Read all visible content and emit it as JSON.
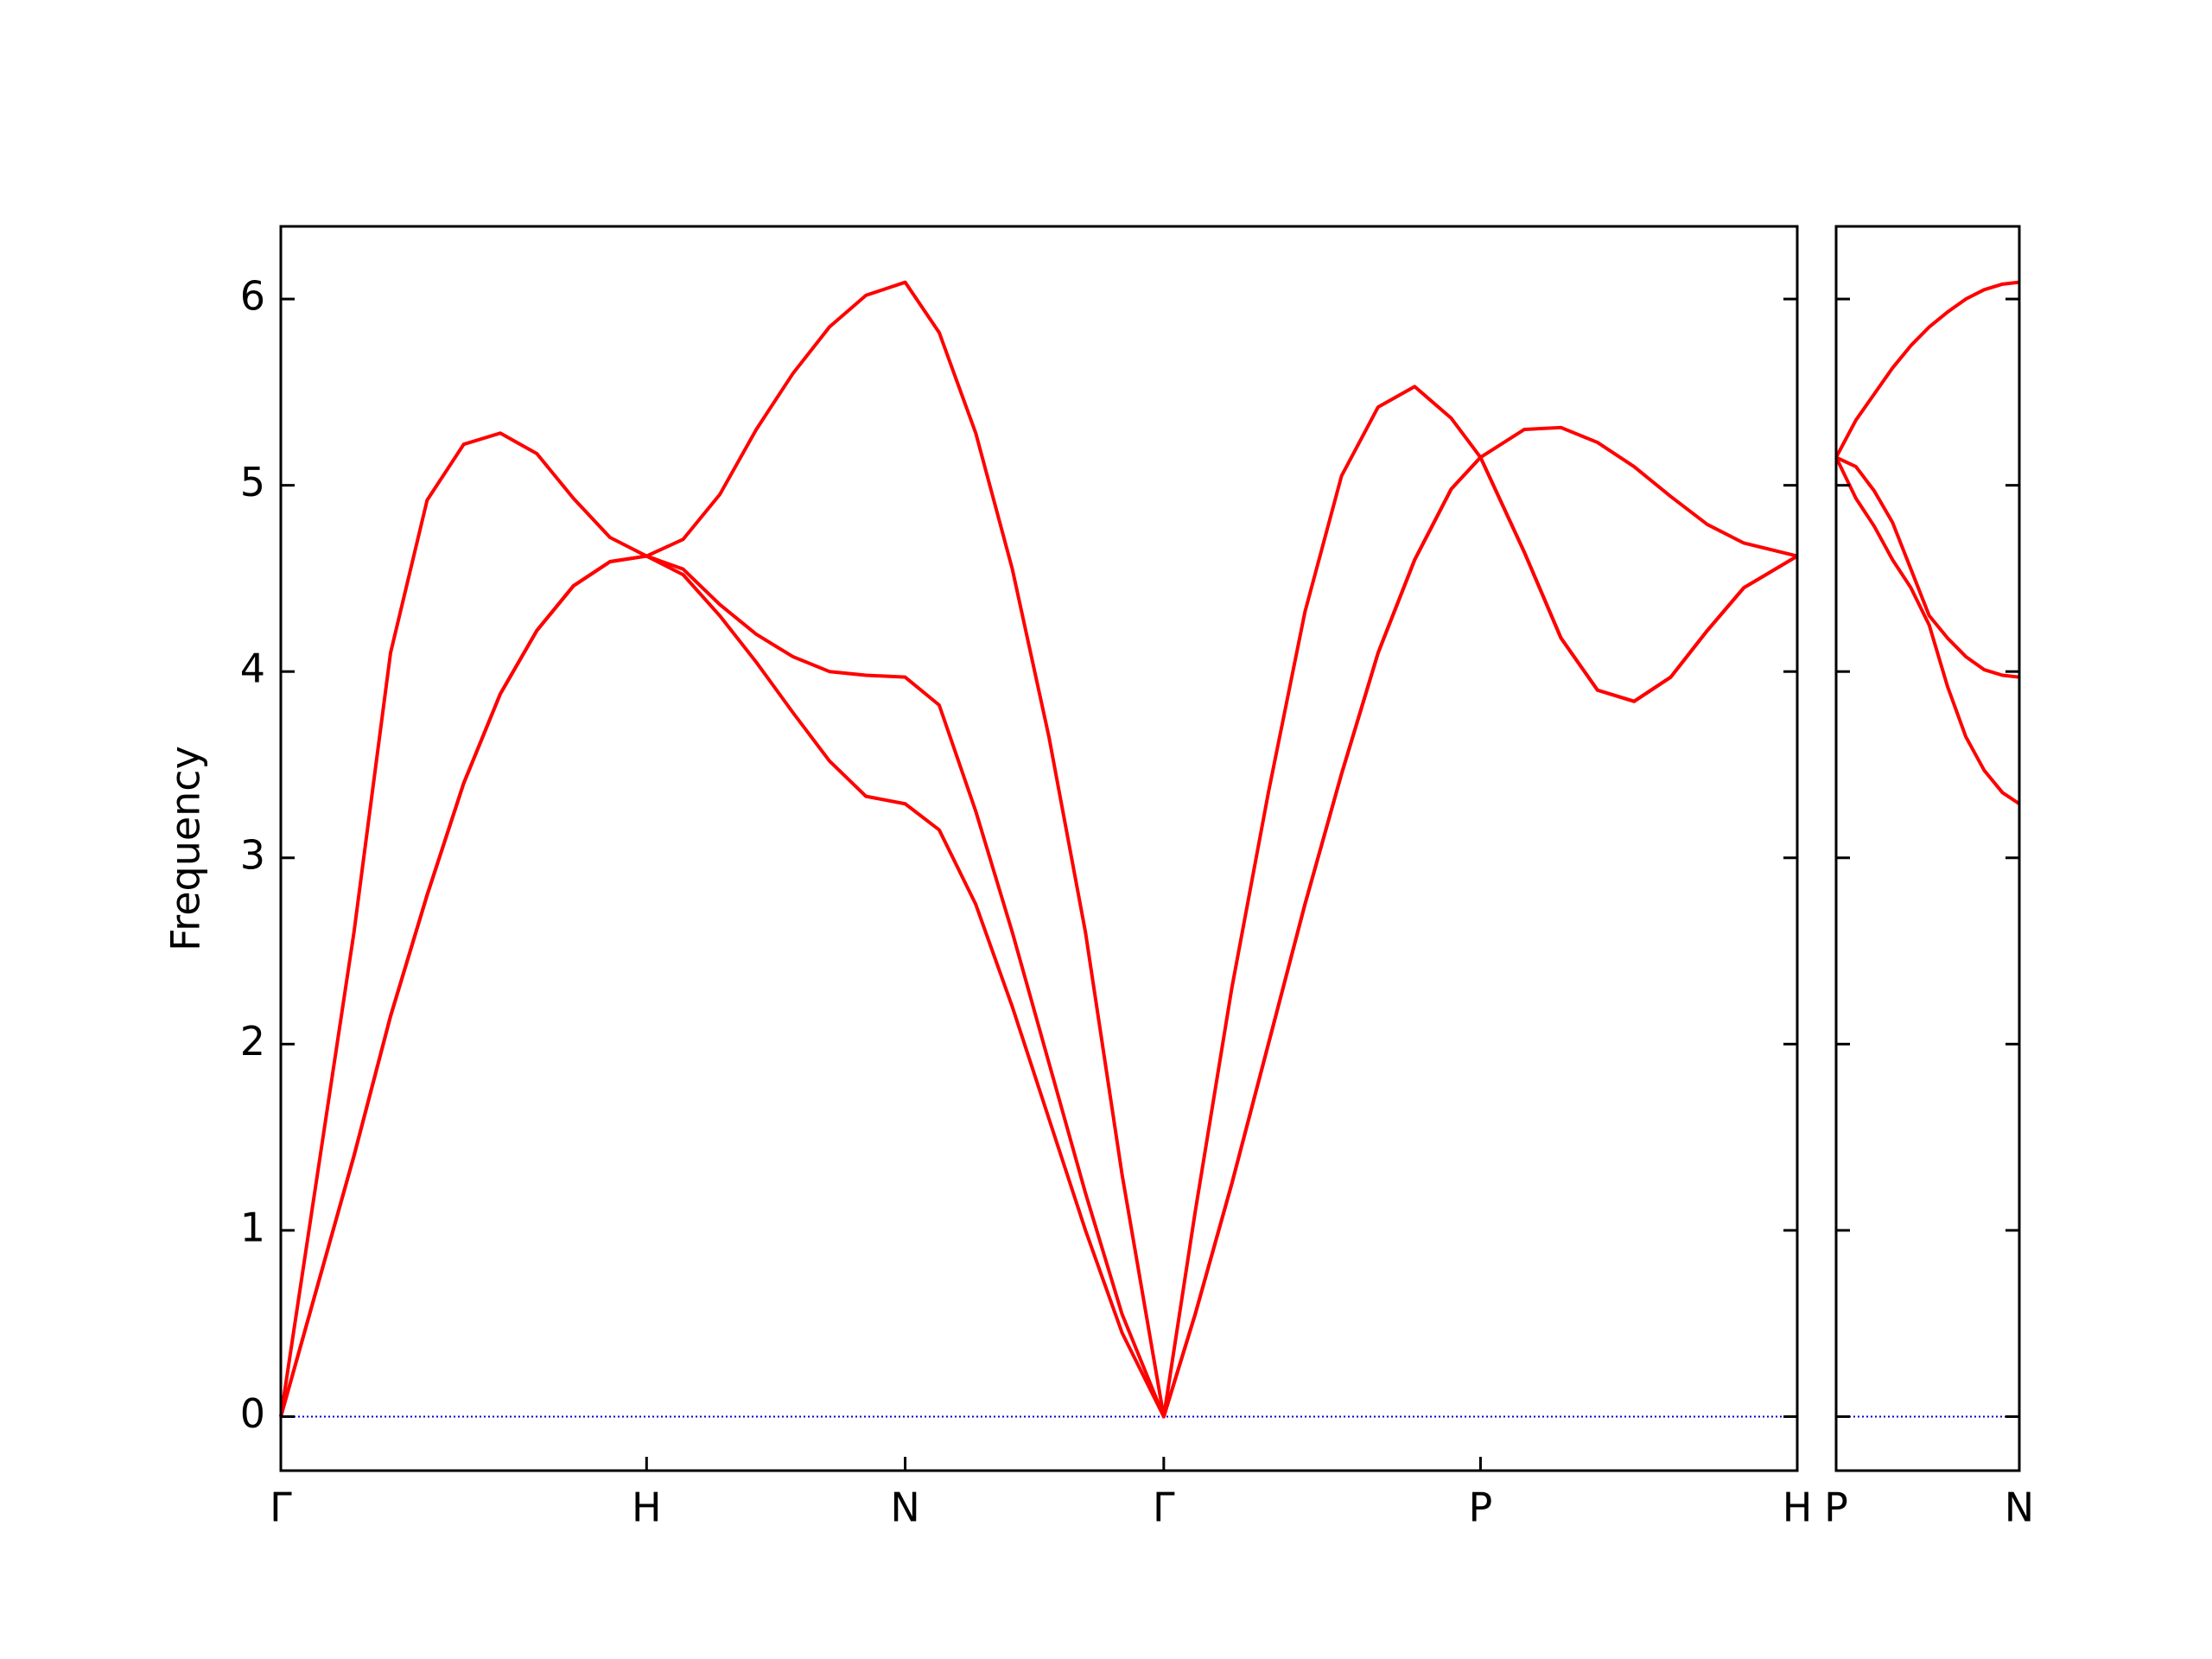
{
  "chart_data": [
    {
      "type": "line",
      "ylabel": "Frequency",
      "x": [
        0,
        0.1,
        0.2,
        0.3,
        0.4,
        0.5,
        0.6,
        0.7,
        0.8,
        0.9,
        1,
        1.1,
        1.2,
        1.3,
        1.4,
        1.5,
        1.6,
        1.707,
        1.8,
        1.9,
        2.0,
        2.1,
        2.2,
        2.3,
        2.414,
        2.5,
        2.6,
        2.7,
        2.8,
        2.9,
        3.0,
        3.1,
        3.2,
        3.28,
        3.4,
        3.5,
        3.6,
        3.7,
        3.8,
        3.9,
        4.0,
        4.146
      ],
      "series": [
        {
          "color": "#ff0000",
          "values": [
            0,
            0.7,
            1.4,
            2.15,
            2.8,
            3.4,
            3.88,
            4.22,
            4.46,
            4.59,
            4.62,
            4.52,
            4.3,
            4.05,
            3.78,
            3.52,
            3.33,
            3.29,
            3.15,
            2.75,
            2.2,
            1.6,
            1.0,
            0.45,
            0,
            0.55,
            1.25,
            2.0,
            2.75,
            3.45,
            4.1,
            4.6,
            4.98,
            5.15,
            4.64,
            4.18,
            3.9,
            3.84,
            3.97,
            4.22,
            4.45,
            4.62
          ]
        },
        {
          "color": "#ff0000",
          "values": [
            0,
            0.7,
            1.4,
            2.15,
            2.8,
            3.4,
            3.88,
            4.22,
            4.46,
            4.59,
            4.62,
            4.55,
            4.36,
            4.2,
            4.08,
            4.0,
            3.98,
            3.97,
            3.82,
            3.25,
            2.6,
            1.9,
            1.2,
            0.55,
            0,
            0.55,
            1.25,
            2.0,
            2.75,
            3.45,
            4.1,
            4.6,
            4.98,
            5.15,
            4.64,
            4.18,
            3.9,
            3.84,
            3.97,
            4.22,
            4.45,
            4.62
          ]
        },
        {
          "color": "#ff0000",
          "values": [
            0,
            1.3,
            2.6,
            4.1,
            4.92,
            5.22,
            5.28,
            5.17,
            4.93,
            4.72,
            4.62,
            4.71,
            4.95,
            5.3,
            5.6,
            5.85,
            6.02,
            6.09,
            5.82,
            5.28,
            4.55,
            3.65,
            2.6,
            1.3,
            0,
            1.1,
            2.3,
            3.35,
            4.32,
            5.05,
            5.42,
            5.53,
            5.36,
            5.15,
            5.3,
            5.31,
            5.23,
            5.1,
            4.94,
            4.79,
            4.69,
            4.62
          ]
        }
      ],
      "xlim": [
        0,
        4.146
      ],
      "xticks": [
        {
          "value": 0,
          "label": "Γ"
        },
        {
          "value": 1,
          "label": "H"
        },
        {
          "value": 1.707,
          "label": "N"
        },
        {
          "value": 2.414,
          "label": "Γ"
        },
        {
          "value": 3.28,
          "label": "P"
        },
        {
          "value": 4.146,
          "label": "H"
        }
      ],
      "ylim": [
        -0.29,
        6.39
      ],
      "yticks": [
        0,
        1,
        2,
        3,
        4,
        5,
        6
      ],
      "ytick_labels": true,
      "hlines": [
        {
          "y": 0,
          "color": "#0000cd",
          "style": "dotted"
        }
      ]
    },
    {
      "type": "line",
      "x": [
        4.146,
        4.2,
        4.25,
        4.3,
        4.35,
        4.4,
        4.45,
        4.5,
        4.55,
        4.6,
        4.646
      ],
      "series": [
        {
          "color": "#ff0000",
          "values": [
            5.15,
            4.93,
            4.78,
            4.6,
            4.45,
            4.25,
            3.92,
            3.65,
            3.47,
            3.35,
            3.29
          ]
        },
        {
          "color": "#ff0000",
          "values": [
            5.15,
            5.1,
            4.97,
            4.8,
            4.55,
            4.3,
            4.18,
            4.08,
            4.01,
            3.98,
            3.97
          ]
        },
        {
          "color": "#ff0000",
          "values": [
            5.15,
            5.35,
            5.49,
            5.63,
            5.75,
            5.85,
            5.93,
            6.0,
            6.05,
            6.08,
            6.09
          ]
        }
      ],
      "xlim": [
        4.146,
        4.646
      ],
      "xticks": [
        {
          "value": 4.146,
          "label": "P"
        },
        {
          "value": 4.646,
          "label": "N"
        }
      ],
      "ylim": [
        -0.29,
        6.39
      ],
      "yticks": [
        0,
        1,
        2,
        3,
        4,
        5,
        6
      ],
      "ytick_labels": false,
      "hlines": [
        {
          "y": 0,
          "color": "#0000cd",
          "style": "dotted"
        }
      ]
    }
  ]
}
